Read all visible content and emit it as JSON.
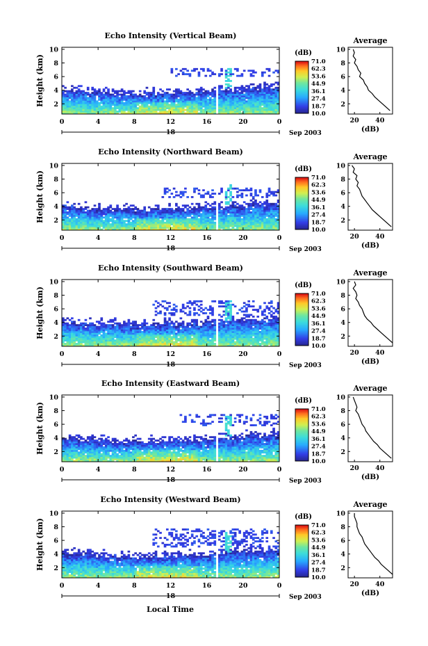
{
  "figure": {
    "xlabel": "Local Time",
    "date_label": "Sep 2003",
    "day_label": "18",
    "colorbar_unit": "(dB)",
    "colorbar_ticks": [
      "71.0",
      "62.3",
      "53.6",
      "44.9",
      "36.1",
      "27.4",
      "18.7",
      "10.0"
    ],
    "average_title": "Average",
    "average_xlabel": "(dB)"
  },
  "chart_data": [
    {
      "type": "heatmap",
      "title": "Echo Intensity (Vertical Beam)",
      "ylabel": "Height (km)",
      "x_ticks": [
        "0",
        "4",
        "8",
        "12",
        "16",
        "20",
        "0"
      ],
      "y_ticks": [
        "2",
        "4",
        "6",
        "8",
        "10"
      ],
      "xlim": [
        0,
        24
      ],
      "ylim": [
        0.5,
        10.3
      ],
      "colorbar": {
        "min": 10.0,
        "max": 71.0,
        "unit": "dB"
      },
      "layer_top_km": 3.9,
      "upper_echo_km": [
        6.0,
        7.2
      ],
      "upper_echo_start_h": 12,
      "average_profile": {
        "xlim": [
          15,
          50
        ],
        "x_ticks": [
          "20",
          "40"
        ],
        "heights_km": [
          10,
          9.5,
          9,
          8.5,
          8,
          7.5,
          7,
          6.5,
          6,
          5.5,
          5,
          4.5,
          4,
          3.5,
          3,
          2.5,
          2,
          1.5,
          1
        ],
        "values_db": [
          19,
          20,
          19,
          21,
          20,
          22,
          23,
          25,
          24,
          27,
          28,
          30,
          31,
          34,
          36,
          39,
          42,
          45,
          48
        ]
      }
    },
    {
      "type": "heatmap",
      "title": "Echo Intensity (Northward Beam)",
      "ylabel": "Height (km)",
      "x_ticks": [
        "0",
        "4",
        "8",
        "12",
        "16",
        "20",
        "0"
      ],
      "y_ticks": [
        "2",
        "4",
        "6",
        "8",
        "10"
      ],
      "xlim": [
        0,
        24
      ],
      "ylim": [
        0.5,
        10.3
      ],
      "colorbar": {
        "min": 10.0,
        "max": 71.0,
        "unit": "dB"
      },
      "layer_top_km": 3.9,
      "upper_echo_km": [
        5.2,
        6.6
      ],
      "upper_echo_start_h": 11,
      "average_profile": {
        "xlim": [
          15,
          50
        ],
        "x_ticks": [
          "20",
          "40"
        ],
        "heights_km": [
          10,
          9.5,
          9,
          8.5,
          8,
          7.5,
          7,
          6.5,
          6,
          5.5,
          5,
          4.5,
          4,
          3.5,
          3,
          2.5,
          2,
          1.5,
          1
        ],
        "values_db": [
          18,
          20,
          19,
          22,
          21,
          23,
          22,
          24,
          25,
          26,
          28,
          30,
          32,
          34,
          37,
          40,
          43,
          46,
          49
        ]
      }
    },
    {
      "type": "heatmap",
      "title": "Echo Intensity (Southward Beam)",
      "ylabel": "Height (km)",
      "x_ticks": [
        "0",
        "4",
        "8",
        "12",
        "16",
        "20",
        "0"
      ],
      "y_ticks": [
        "2",
        "4",
        "6",
        "8",
        "10"
      ],
      "xlim": [
        0,
        24
      ],
      "ylim": [
        0.5,
        10.3
      ],
      "colorbar": {
        "min": 10.0,
        "max": 71.0,
        "unit": "dB"
      },
      "layer_top_km": 4.1,
      "upper_echo_km": [
        5.0,
        7.0
      ],
      "upper_echo_start_h": 10,
      "average_profile": {
        "xlim": [
          15,
          50
        ],
        "x_ticks": [
          "20",
          "40"
        ],
        "heights_km": [
          10,
          9.5,
          9,
          8.5,
          8,
          7.5,
          7,
          6.5,
          6,
          5.5,
          5,
          4.5,
          4,
          3.5,
          3,
          2.5,
          2,
          1.5,
          1
        ],
        "values_db": [
          20,
          21,
          19,
          21,
          22,
          21,
          23,
          24,
          26,
          27,
          28,
          30,
          33,
          35,
          38,
          41,
          44,
          47,
          50
        ]
      }
    },
    {
      "type": "heatmap",
      "title": "Echo Intensity (Eastward Beam)",
      "ylabel": "Height (km)",
      "x_ticks": [
        "0",
        "4",
        "8",
        "12",
        "16",
        "20",
        "0"
      ],
      "y_ticks": [
        "2",
        "4",
        "6",
        "8",
        "10"
      ],
      "xlim": [
        0,
        24
      ],
      "ylim": [
        0.5,
        10.3
      ],
      "colorbar": {
        "min": 10.0,
        "max": 71.0,
        "unit": "dB"
      },
      "layer_top_km": 3.9,
      "upper_echo_km": [
        5.6,
        7.4
      ],
      "upper_echo_start_h": 13,
      "average_profile": {
        "xlim": [
          15,
          50
        ],
        "x_ticks": [
          "20",
          "40"
        ],
        "heights_km": [
          10,
          9.5,
          9,
          8.5,
          8,
          7.5,
          7,
          6.5,
          6,
          5.5,
          5,
          4.5,
          4,
          3.5,
          3,
          2.5,
          2,
          1.5,
          1
        ],
        "values_db": [
          19,
          20,
          21,
          22,
          21,
          23,
          24,
          25,
          26,
          28,
          29,
          31,
          33,
          35,
          38,
          40,
          43,
          46,
          49
        ]
      }
    },
    {
      "type": "heatmap",
      "title": "Echo Intensity (Westward Beam)",
      "ylabel": "Height (km)",
      "x_ticks": [
        "0",
        "4",
        "8",
        "12",
        "16",
        "20",
        "0"
      ],
      "y_ticks": [
        "2",
        "4",
        "6",
        "8",
        "10"
      ],
      "xlim": [
        0,
        24
      ],
      "ylim": [
        0.5,
        10.3
      ],
      "colorbar": {
        "min": 10.0,
        "max": 71.0,
        "unit": "dB"
      },
      "layer_top_km": 4.1,
      "upper_echo_km": [
        4.8,
        7.6
      ],
      "upper_echo_start_h": 10,
      "average_profile": {
        "xlim": [
          15,
          50
        ],
        "x_ticks": [
          "20",
          "40"
        ],
        "heights_km": [
          10,
          9.5,
          9,
          8.5,
          8,
          7.5,
          7,
          6.5,
          6,
          5.5,
          5,
          4.5,
          4,
          3.5,
          3,
          2.5,
          2,
          1.5,
          1
        ],
        "values_db": [
          20,
          20,
          21,
          22,
          22,
          23,
          24,
          26,
          27,
          28,
          30,
          32,
          34,
          36,
          39,
          41,
          44,
          47,
          50
        ]
      }
    }
  ]
}
